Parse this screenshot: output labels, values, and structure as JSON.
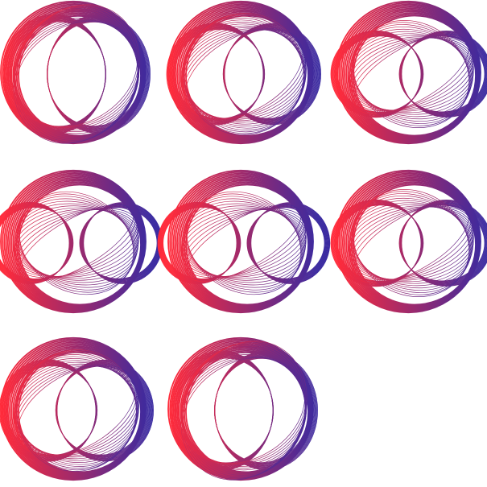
{
  "colors": {
    "background": "#ffffff",
    "gradient_start": "#ff2a3a",
    "gradient_end": "#3a2aa0"
  },
  "patterns": [
    {
      "id": "pattern-1",
      "shape": "vertical-eye-spirograph"
    },
    {
      "id": "pattern-2",
      "shape": "diagonal-eye-spirograph"
    },
    {
      "id": "pattern-3",
      "shape": "shallow-eye-spirograph"
    },
    {
      "id": "pattern-4",
      "shape": "horizontal-eye-spirograph"
    },
    {
      "id": "pattern-5",
      "shape": "horizontal-eye-spirograph"
    },
    {
      "id": "pattern-6",
      "shape": "shallow-eye-spirograph"
    },
    {
      "id": "pattern-7",
      "shape": "diagonal-eye-spirograph"
    },
    {
      "id": "pattern-8",
      "shape": "vertical-eye-spirograph"
    }
  ]
}
